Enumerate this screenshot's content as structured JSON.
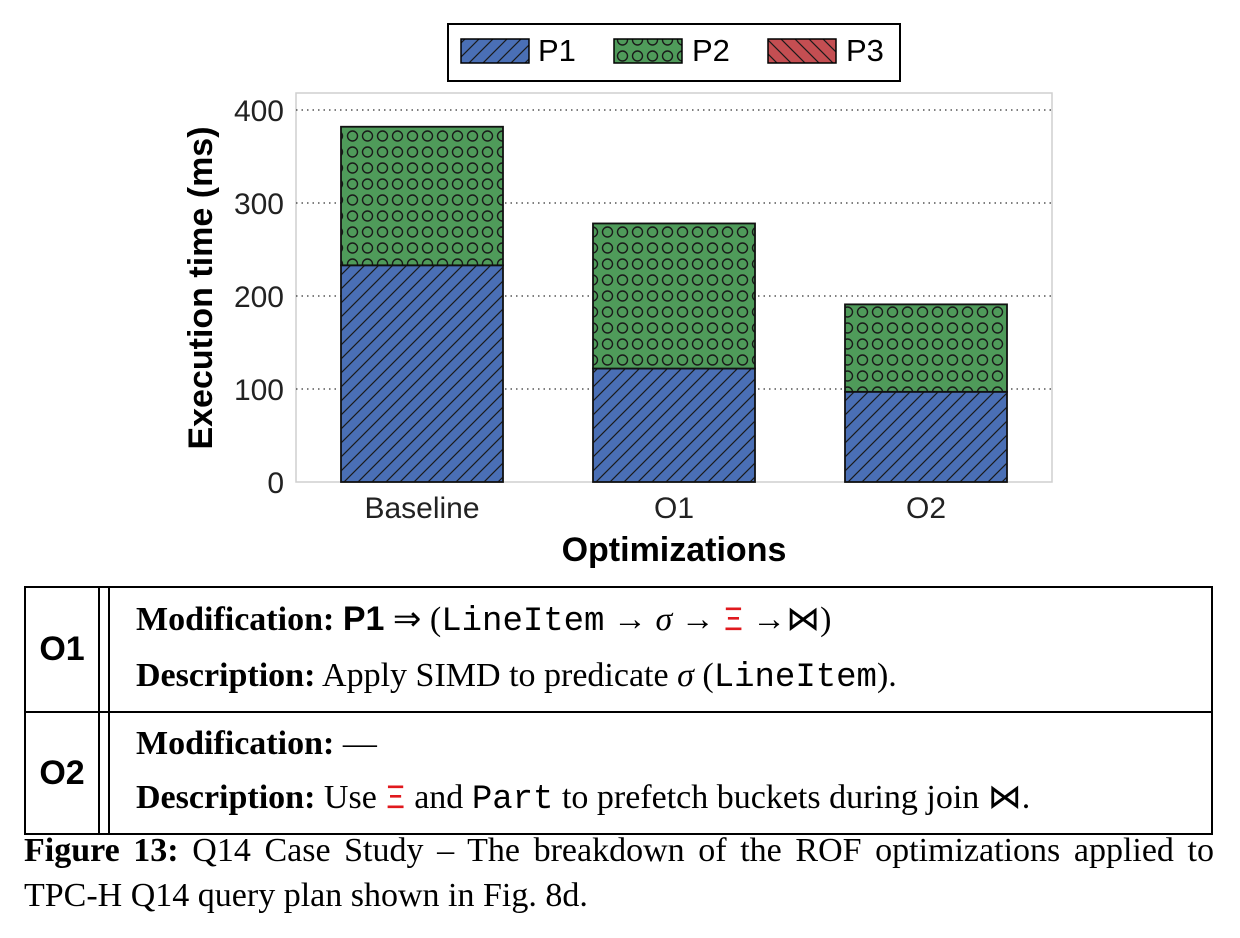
{
  "chart_data": {
    "type": "bar",
    "stacked": true,
    "categories": [
      "Baseline",
      "O1",
      "O2"
    ],
    "series": [
      {
        "name": "P1",
        "values": [
          233,
          122,
          97
        ],
        "color": "#4a6fb5",
        "pattern": "diagonal-hatch"
      },
      {
        "name": "P2",
        "values": [
          149,
          156,
          94
        ],
        "color": "#4f9b5a",
        "pattern": "circles"
      },
      {
        "name": "P3",
        "values": [
          0,
          0,
          0
        ],
        "color": "#c44e52",
        "pattern": "back-diagonal-hatch"
      }
    ],
    "xlabel": "Optimizations",
    "ylabel": "Execution time (ms)",
    "ylim": [
      0,
      420
    ],
    "yticks": [
      "0",
      "100",
      "200",
      "300",
      "400"
    ],
    "grid": "horizontal dotted",
    "legend_position": "top-center"
  },
  "table": {
    "rows": [
      {
        "id": "O1",
        "modification_label": "Modification:",
        "modification_p": "P1",
        "modification_arrow": "⇒",
        "modification_open": "(",
        "modification_table": "LineItem",
        "modification_to1": " → ",
        "modification_sigma": "σ",
        "modification_to2": " → ",
        "modification_xi": "Ξ",
        "modification_to3": " →",
        "modification_join": "⋈",
        "modification_close": ")",
        "description_label": "Description:",
        "description_text": "Apply SIMD to predicate",
        "description_sigma": "σ",
        "description_open": "(",
        "description_table": "LineItem",
        "description_close": ")."
      },
      {
        "id": "O2",
        "modification_label": "Modification:",
        "modification_value": "—",
        "description_label": "Description:",
        "description_use": "Use",
        "description_xi": "Ξ",
        "description_and": "and",
        "description_part": "Part",
        "description_rest": "to prefetch buckets during join",
        "description_join": "⋈."
      }
    ]
  },
  "caption": {
    "label": "Figure 13:",
    "text": "Q14 Case Study – The breakdown of the ROF optimizations applied to TPC-H Q14 query plan shown in Fig. 8d."
  }
}
